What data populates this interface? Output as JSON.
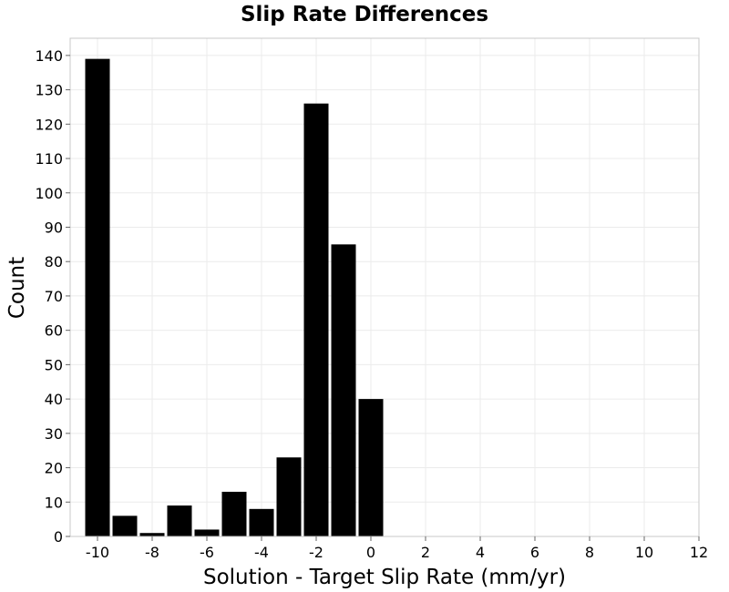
{
  "chart_data": {
    "type": "bar",
    "title": "Slip Rate Differences",
    "xlabel": "Solution - Target Slip Rate (mm/yr)",
    "ylabel": "Count",
    "xlim": [
      -11,
      12
    ],
    "ylim": [
      0,
      145
    ],
    "x_ticks": [
      -10,
      -8,
      -6,
      -4,
      -2,
      0,
      2,
      4,
      6,
      8,
      10,
      12
    ],
    "y_ticks": [
      0,
      10,
      20,
      30,
      40,
      50,
      60,
      70,
      80,
      90,
      100,
      110,
      120,
      130,
      140
    ],
    "bin_width": 1,
    "x": [
      -10,
      -9,
      -8,
      -7,
      -6,
      -5,
      -4,
      -3,
      -2,
      -1,
      0
    ],
    "values": [
      139,
      6,
      1,
      9,
      2,
      13,
      8,
      23,
      126,
      85,
      40
    ],
    "grid": true,
    "bar_color": "#000000",
    "grid_color": "#ebebeb",
    "frame_color": "#c8c8c8"
  }
}
